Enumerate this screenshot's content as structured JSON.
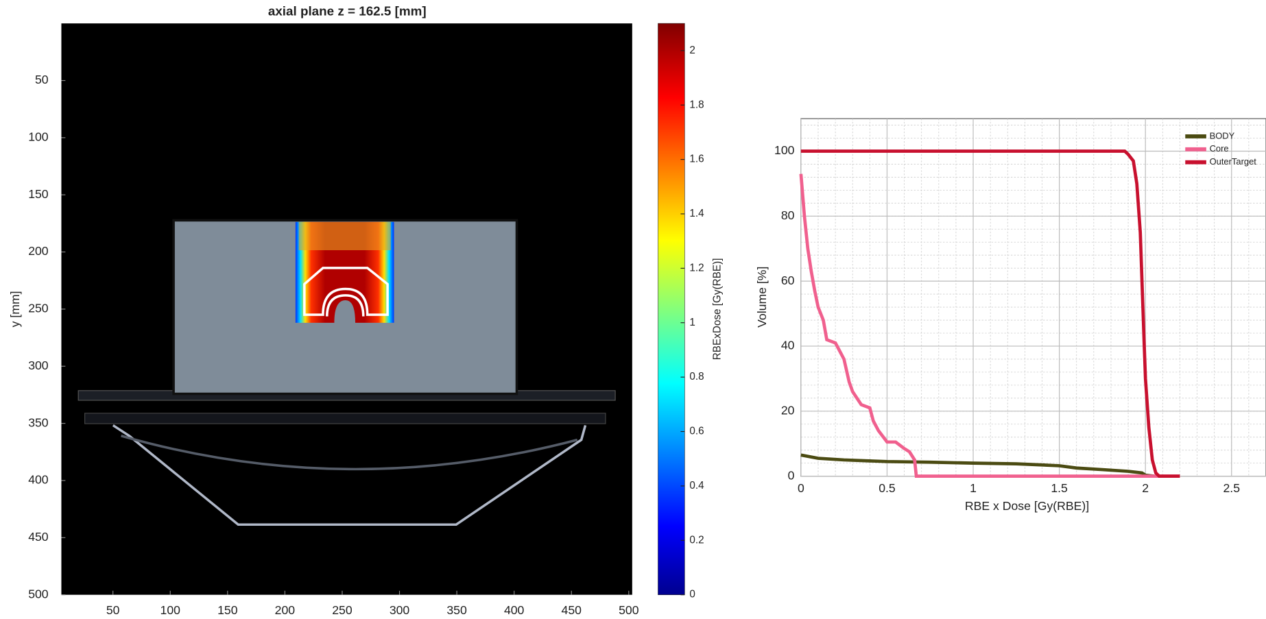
{
  "chart_data": [
    {
      "type": "image",
      "title": "axial plane z = 162.5 [mm]",
      "ylabel": "y [mm]",
      "xlim": [
        5,
        503
      ],
      "ylim": [
        0,
        500
      ],
      "y_reversed": true,
      "xticks": [
        50,
        100,
        150,
        200,
        250,
        300,
        350,
        400,
        450,
        500
      ],
      "yticks": [
        50,
        100,
        150,
        200,
        250,
        300,
        350,
        400,
        450,
        500
      ],
      "colorbar": {
        "label": "RBExDose [Gy(RBE)]",
        "colormap": "jet",
        "lim": [
          0,
          2.1
        ],
        "ticks": [
          0,
          0.2,
          0.4,
          0.6,
          0.8,
          1,
          1.2,
          1.4,
          1.6,
          1.8,
          2
        ]
      }
    },
    {
      "type": "line",
      "xlabel": "RBE x Dose [Gy(RBE)]",
      "ylabel": "Volume [%]",
      "xlim": [
        0,
        2.7
      ],
      "ylim": [
        0,
        110
      ],
      "xticks": [
        0,
        0.5,
        1,
        1.5,
        2,
        2.5
      ],
      "yticks": [
        0,
        20,
        40,
        60,
        80,
        100
      ],
      "grid": true,
      "minor_grid": true,
      "legend": "upper right",
      "series": [
        {
          "name": "BODY",
          "color": "#4b4b12",
          "x": [
            0,
            0.1,
            0.25,
            0.5,
            0.75,
            1,
            1.25,
            1.5,
            1.6,
            1.75,
            1.9,
            1.98,
            2.0,
            2.05
          ],
          "values": [
            6.5,
            5.5,
            5,
            4.5,
            4.3,
            4,
            3.8,
            3.2,
            2.5,
            2,
            1.5,
            1,
            0.3,
            0
          ]
        },
        {
          "name": "Core",
          "color": "#f0608e",
          "x": [
            0,
            0.02,
            0.04,
            0.06,
            0.08,
            0.1,
            0.13,
            0.15,
            0.2,
            0.25,
            0.28,
            0.3,
            0.35,
            0.4,
            0.42,
            0.45,
            0.5,
            0.55,
            0.6,
            0.63,
            0.66,
            0.67,
            0.7,
            1,
            1.5,
            2,
            2.2
          ],
          "values": [
            93,
            80,
            70,
            63,
            57,
            52,
            48,
            42,
            41,
            36,
            29,
            26,
            22,
            21,
            17,
            14,
            10.5,
            10.5,
            8.5,
            7.5,
            5,
            0,
            0,
            0,
            0,
            0,
            0
          ]
        },
        {
          "name": "OuterTarget",
          "color": "#c8102e",
          "x": [
            0,
            0.5,
            1,
            1.5,
            1.85,
            1.88,
            1.9,
            1.93,
            1.95,
            1.97,
            1.98,
            1.99,
            2.0,
            2.02,
            2.04,
            2.06,
            2.08,
            2.1,
            2.2
          ],
          "values": [
            100,
            100,
            100,
            100,
            100,
            100,
            99,
            97,
            90,
            75,
            60,
            45,
            30,
            15,
            5,
            1,
            0,
            0,
            0
          ]
        }
      ]
    }
  ]
}
